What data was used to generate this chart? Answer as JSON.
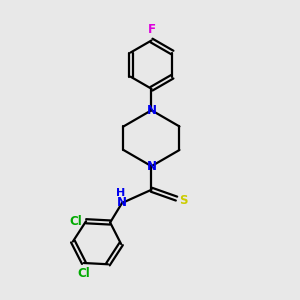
{
  "bg_color": "#e8e8e8",
  "bond_color": "#000000",
  "N_color": "#0000ee",
  "S_color": "#cccc00",
  "F_color": "#dd00dd",
  "Cl_color": "#00aa00",
  "NH_color": "#0000ee",
  "line_width": 1.6,
  "font_size_atom": 8.5,
  "fig_size": [
    3.0,
    3.0
  ],
  "dpi": 100,
  "xlim": [
    0,
    10
  ],
  "ylim": [
    0,
    10
  ]
}
